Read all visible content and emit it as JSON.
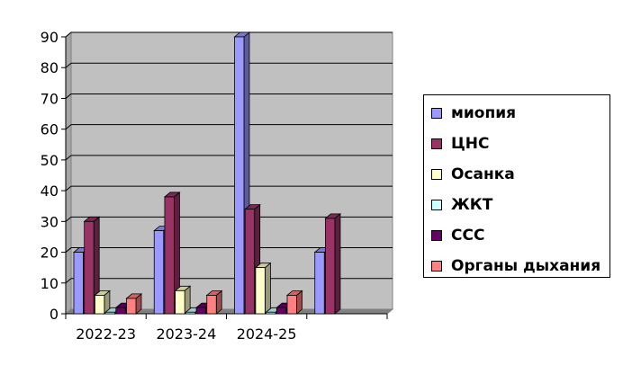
{
  "chart_data": {
    "type": "bar",
    "categories": [
      "2022-23",
      "2023-24",
      "2024-25",
      ""
    ],
    "series": [
      {
        "name": "миопия",
        "color": "#9999ff",
        "values": [
          20,
          27,
          90,
          20
        ]
      },
      {
        "name": "ЦНС",
        "color": "#993366",
        "values": [
          30,
          38,
          34,
          31
        ]
      },
      {
        "name": "Осанка",
        "color": "#ffffcc",
        "values": [
          6,
          7.5,
          15,
          0
        ]
      },
      {
        "name": "ЖКТ",
        "color": "#ccffff",
        "values": [
          0.5,
          0.5,
          0.5,
          0
        ]
      },
      {
        "name": "ССС",
        "color": "#660066",
        "values": [
          2,
          2,
          2,
          0
        ]
      },
      {
        "name": "Органы дыхания",
        "color": "#ff8080",
        "values": [
          5,
          6,
          6,
          0
        ]
      }
    ],
    "yticks": [
      "0",
      "10",
      "20",
      "30",
      "40",
      "50",
      "60",
      "70",
      "80",
      "90"
    ],
    "ylim": [
      0,
      90
    ],
    "grid": true,
    "legend_position": "right",
    "plot_background": "#c0c0c0",
    "three_d": true
  }
}
